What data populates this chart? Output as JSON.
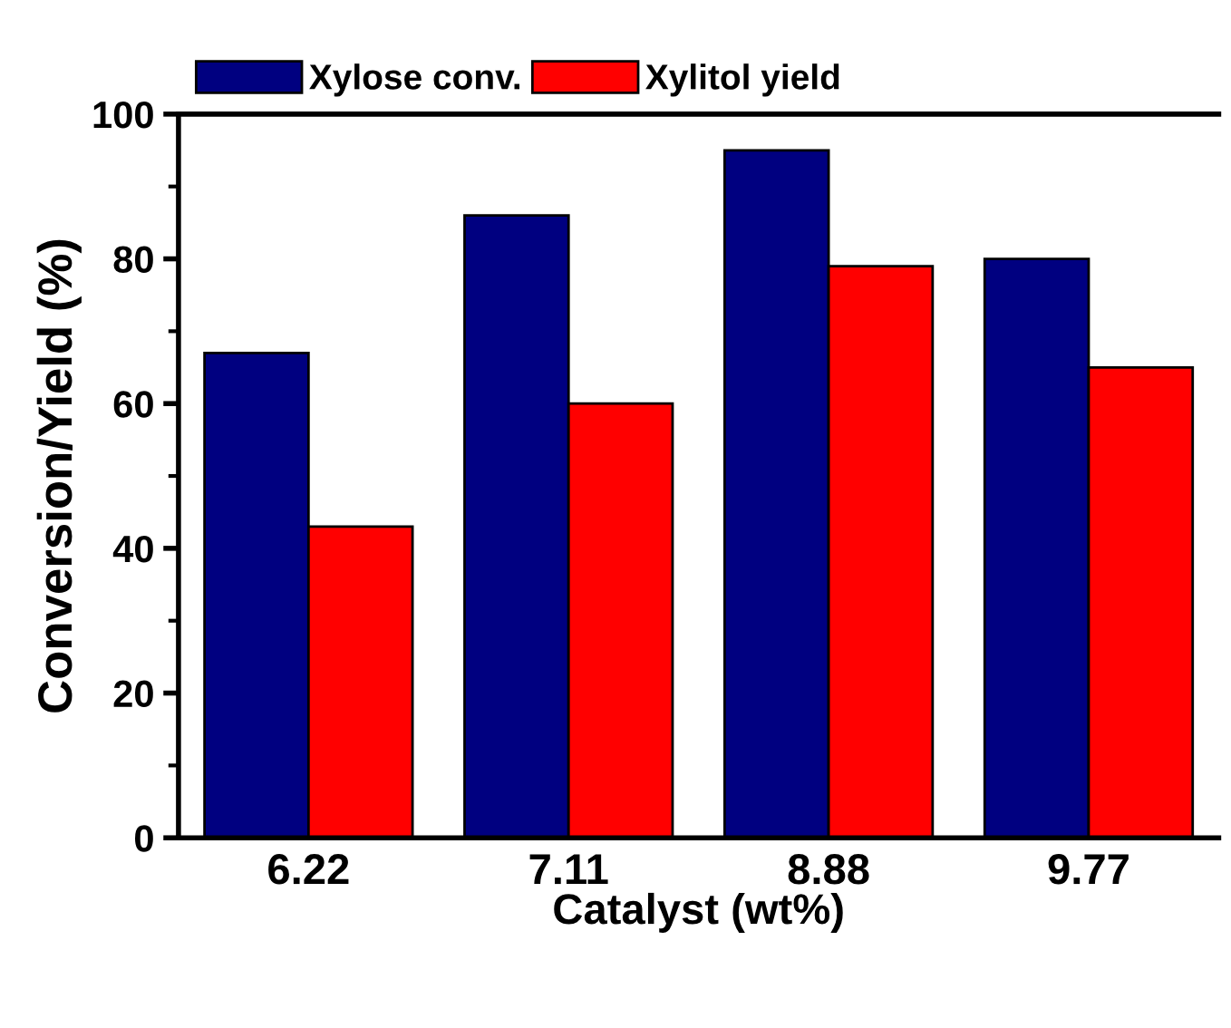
{
  "chart_data": {
    "type": "bar",
    "xlabel": "Catalyst (wt%)",
    "ylabel": "Conversion/Yield (%)",
    "categories": [
      "6.22",
      "7.11",
      "8.88",
      "9.77"
    ],
    "series": [
      {
        "name": "Xylose conv.",
        "color": "#000080",
        "values": [
          67,
          86,
          95,
          80
        ]
      },
      {
        "name": "Xylitol yield",
        "color": "#ff0000",
        "values": [
          43,
          60,
          79,
          65
        ]
      }
    ],
    "ylim": [
      0,
      100
    ],
    "yticks": [
      0,
      20,
      40,
      60,
      80,
      100
    ],
    "grid": false,
    "legend": "top"
  }
}
